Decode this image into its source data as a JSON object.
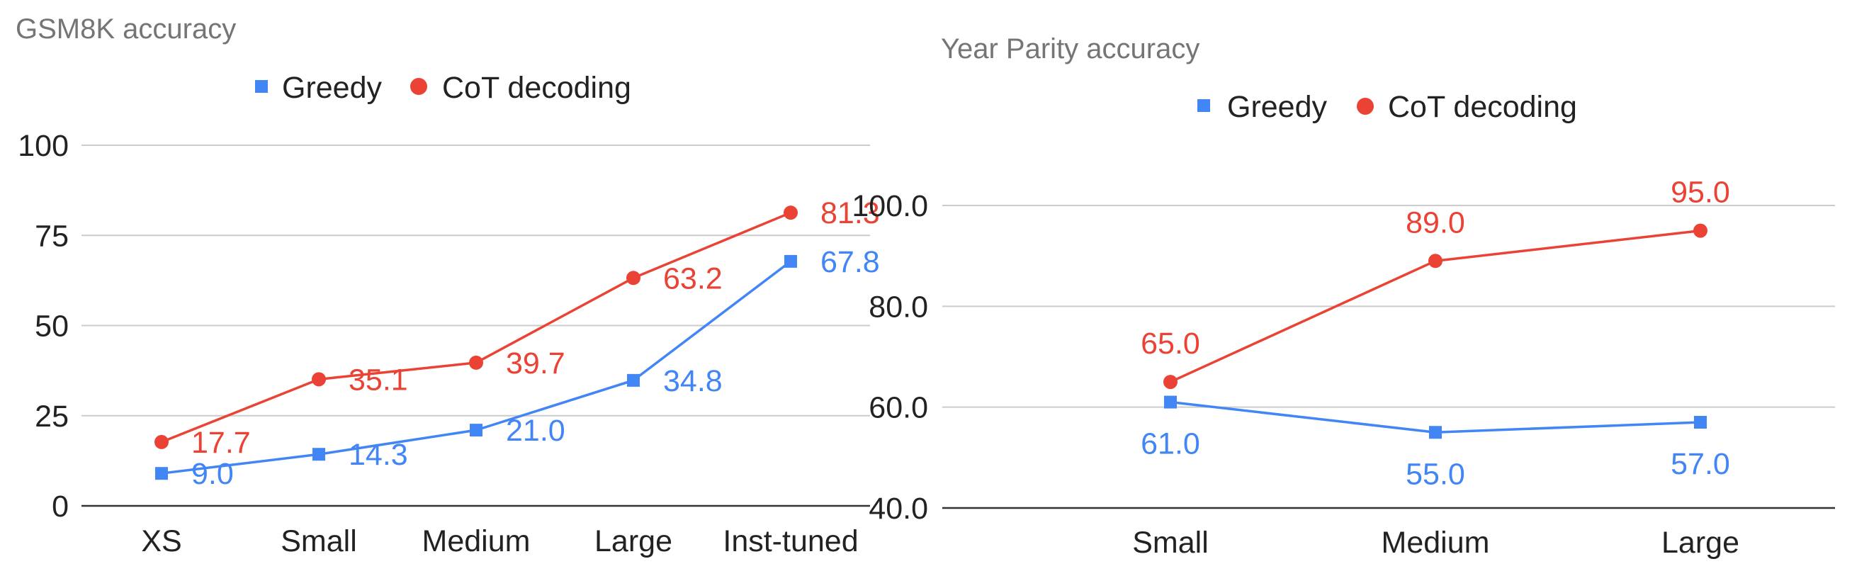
{
  "colors": {
    "greedy": "#4285f4",
    "cot": "#ea4335"
  },
  "chart_data": [
    {
      "type": "line",
      "title": "GSM8K accuracy",
      "xlabel": "",
      "ylabel": "",
      "categories": [
        "XS",
        "Small",
        "Medium",
        "Large",
        "Inst-tuned"
      ],
      "ylim": [
        0,
        100
      ],
      "yticks": [
        "0",
        "25",
        "50",
        "75",
        "100"
      ],
      "grid": true,
      "legend": "top",
      "series": [
        {
          "name": "Greedy",
          "marker": "square",
          "values": [
            9.0,
            14.3,
            21.0,
            34.8,
            67.8
          ],
          "labels": [
            "9.0",
            "14.3",
            "21.0",
            "34.8",
            "67.8"
          ]
        },
        {
          "name": "CoT decoding",
          "marker": "circle",
          "values": [
            17.7,
            35.1,
            39.7,
            63.2,
            81.3
          ],
          "labels": [
            "17.7",
            "35.1",
            "39.7",
            "63.2",
            "81.3"
          ]
        }
      ]
    },
    {
      "type": "line",
      "title": "Year Parity accuracy",
      "xlabel": "",
      "ylabel": "",
      "categories": [
        "Small",
        "Medium",
        "Large"
      ],
      "ylim": [
        40,
        100
      ],
      "yticks": [
        "40.0",
        "60.0",
        "80.0",
        "100.0"
      ],
      "grid": true,
      "legend": "top",
      "series": [
        {
          "name": "Greedy",
          "marker": "square",
          "values": [
            61.0,
            55.0,
            57.0
          ],
          "labels": [
            "61.0",
            "55.0",
            "57.0"
          ]
        },
        {
          "name": "CoT decoding",
          "marker": "circle",
          "values": [
            65.0,
            89.0,
            95.0
          ],
          "labels": [
            "65.0",
            "89.0",
            "95.0"
          ]
        }
      ]
    }
  ]
}
